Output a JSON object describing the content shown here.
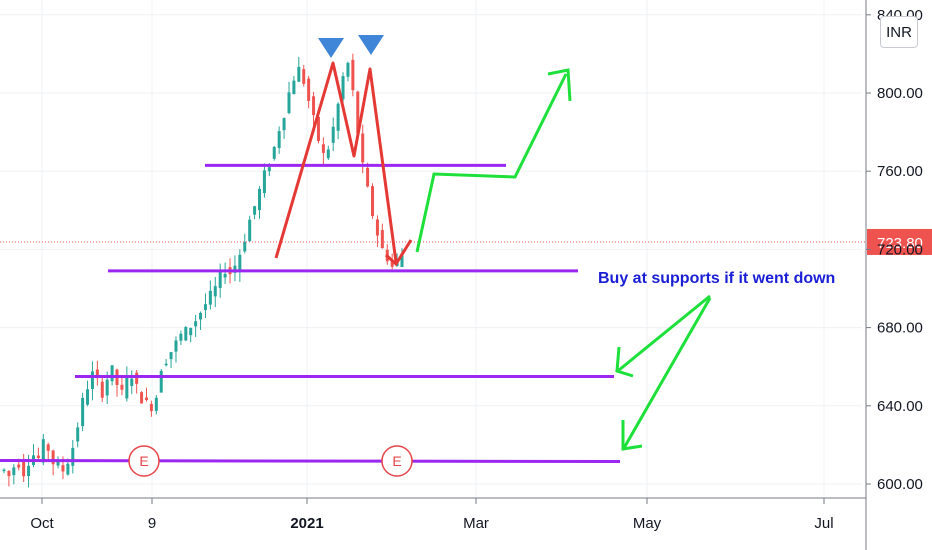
{
  "currency": "INR",
  "chart_data": {
    "type": "candlestick",
    "y_ticks": [
      "600.00",
      "640.00",
      "680.00",
      "720.00",
      "760.00",
      "800.00",
      "840.00"
    ],
    "ylim": [
      596,
      842
    ],
    "x_ticks": [
      "Oct",
      "9",
      "2021",
      "Mar",
      "May",
      "Jul"
    ],
    "current_price": 723.8,
    "current_price_label": "723.80",
    "support_resistance_levels": [
      763,
      709,
      655,
      612
    ],
    "earnings_marker_label": "E",
    "annotation": "Buy at supports if it went down",
    "price_path": [
      607,
      604,
      609,
      611,
      606,
      612,
      615,
      613,
      620,
      618,
      611,
      609,
      607,
      612,
      619,
      630,
      642,
      650,
      656,
      652,
      647,
      654,
      658,
      651,
      646,
      653,
      656,
      649,
      644,
      641,
      640,
      645,
      660,
      664,
      668,
      672,
      676,
      678,
      681,
      684,
      688,
      692,
      696,
      700,
      706,
      710,
      708,
      712,
      718,
      726,
      735,
      742,
      750,
      758,
      764,
      772,
      782,
      790,
      800,
      808,
      812,
      806,
      796,
      786,
      776,
      768,
      772,
      782,
      794,
      808,
      815,
      800,
      780,
      762,
      750,
      738,
      728,
      720,
      716,
      711,
      714,
      718
    ]
  }
}
